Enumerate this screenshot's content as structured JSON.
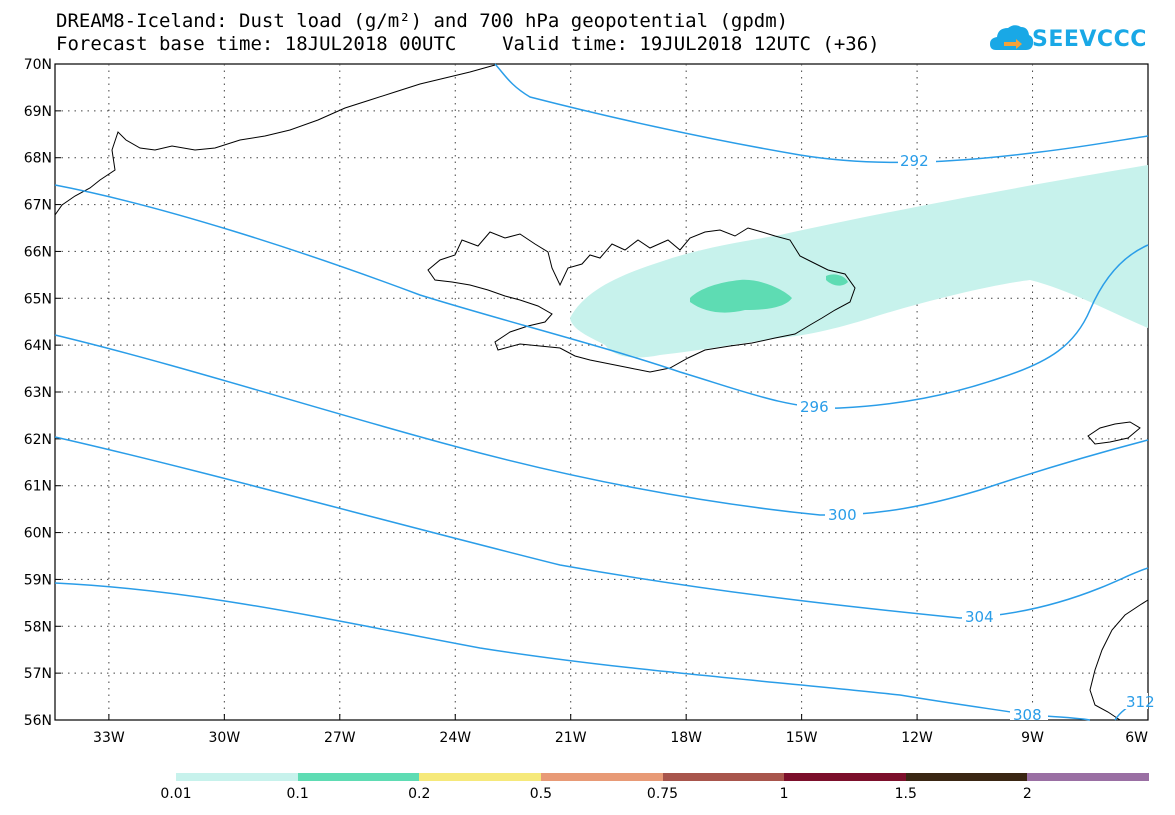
{
  "title_line1": "DREAM8-Iceland: Dust load (g/m²) and 700 hPa geopotential (gpdm)",
  "title_line2": "Forecast base time: 18JUL2018 00UTC    Valid time: 19JUL2018 12UTC (+36)",
  "logo_text": "SEEVCCC",
  "logo_icon": "cloud-icon",
  "map": {
    "lat_labels": [
      "70N",
      "69N",
      "68N",
      "67N",
      "66N",
      "65N",
      "64N",
      "63N",
      "62N",
      "61N",
      "60N",
      "59N",
      "58N",
      "57N",
      "56N"
    ],
    "lon_labels": [
      "33W",
      "30W",
      "27W",
      "24W",
      "21W",
      "18W",
      "15W",
      "12W",
      "9W",
      "6W"
    ],
    "lat_range": [
      56,
      70
    ],
    "lon_range": [
      -34.4,
      -6
    ],
    "grid": "dotted"
  },
  "contours": [
    {
      "value": "292",
      "color": "#2a9de8"
    },
    {
      "value": "296",
      "color": "#2a9de8"
    },
    {
      "value": "300",
      "color": "#2a9de8"
    },
    {
      "value": "304",
      "color": "#2a9de8"
    },
    {
      "value": "308",
      "color": "#2a9de8"
    },
    {
      "value": "312",
      "color": "#2a9de8"
    }
  ],
  "legend": {
    "colors": [
      "#c7f2ec",
      "#5edcb3",
      "#f6e97a",
      "#e89a76",
      "#a8554c",
      "#7c0f2b",
      "#3a2613",
      "#9a6fa3"
    ],
    "labels": [
      "0.01",
      "0.1",
      "0.2",
      "0.5",
      "0.75",
      "1",
      "1.5",
      "2"
    ]
  }
}
